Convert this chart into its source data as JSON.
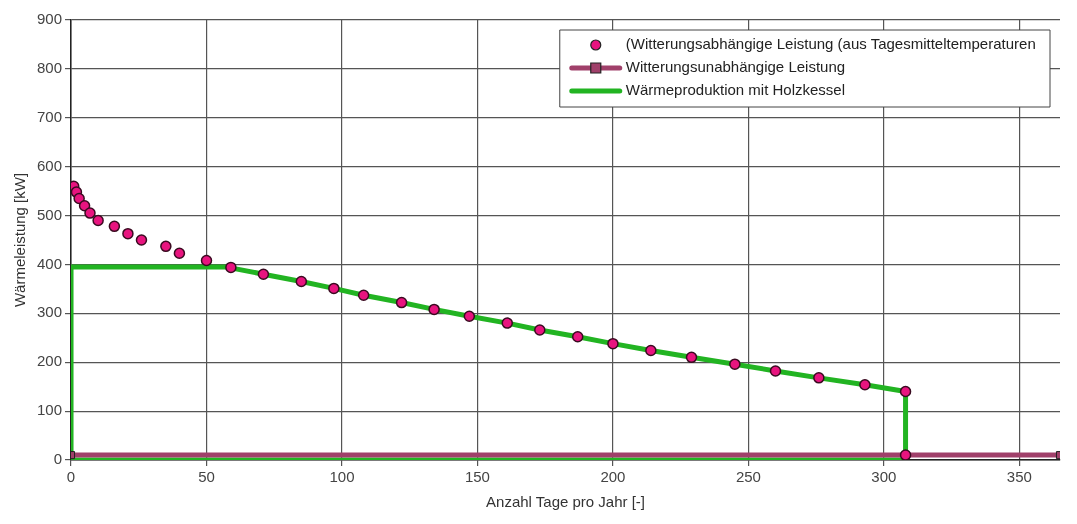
{
  "chart_data": {
    "type": "scatter",
    "xlabel": "Anzahl Tage pro Jahr [-]",
    "ylabel": "Wärmeleistung [kW]",
    "xlim": [
      0,
      365
    ],
    "ylim": [
      0,
      900
    ],
    "xticks": [
      0,
      50,
      100,
      150,
      200,
      250,
      300,
      350
    ],
    "yticks": [
      0,
      100,
      200,
      300,
      400,
      500,
      600,
      700,
      800,
      900
    ],
    "grid": true,
    "legend": "top right",
    "series": [
      {
        "name": "(Witterungsabhängige Leistung (aus Tagesmitteltemperaturen",
        "color": "#e8147f",
        "type": "scatter",
        "marker": "circle",
        "x": [
          1,
          2,
          3,
          5,
          7,
          10,
          16,
          21,
          26,
          35,
          40,
          50,
          59,
          71,
          85,
          97,
          108,
          122,
          134,
          147,
          161,
          173,
          187,
          200,
          214,
          229,
          245,
          260,
          276,
          293,
          308,
          308
        ],
        "values": [
          560,
          548,
          535,
          520,
          505,
          490,
          478,
          463,
          450,
          437,
          423,
          408,
          394,
          380,
          365,
          351,
          337,
          322,
          308,
          294,
          280,
          266,
          252,
          238,
          224,
          210,
          196,
          182,
          168,
          154,
          140,
          10
        ]
      },
      {
        "name": "Witterungsunabhängige Leistung",
        "color": "#a0406a",
        "type": "line",
        "marker": "square",
        "x": [
          0,
          365
        ],
        "values": [
          10,
          10
        ]
      },
      {
        "name": "Wärmeproduktion mit Holzkessel",
        "color": "#22b422",
        "type": "line",
        "marker": "none",
        "x": [
          0,
          0,
          57,
          71,
          85,
          97,
          108,
          122,
          134,
          147,
          161,
          173,
          187,
          200,
          214,
          229,
          245,
          260,
          276,
          293,
          308,
          308
        ],
        "values": [
          0,
          395,
          395,
          380,
          365,
          351,
          337,
          322,
          308,
          294,
          280,
          266,
          252,
          238,
          224,
          210,
          196,
          182,
          168,
          154,
          140,
          0
        ]
      },
      {
        "color": "#22b422",
        "type": "line",
        "marker": "none",
        "x": [
          0,
          308
        ],
        "values": [
          0,
          0
        ]
      }
    ]
  }
}
